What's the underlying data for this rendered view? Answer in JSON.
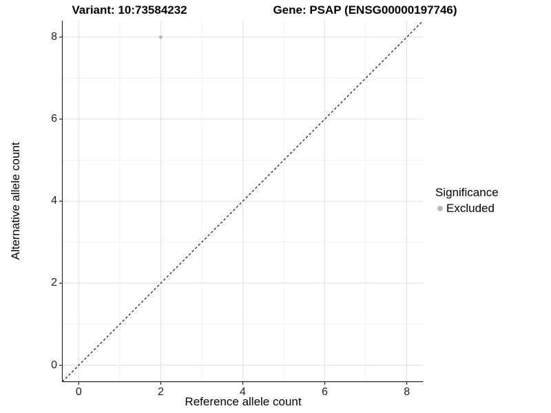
{
  "chart_data": {
    "type": "scatter",
    "title_left": "Variant: 10:73584232",
    "title_right": "Gene: PSAP (ENSG00000197746)",
    "xlabel": "Reference allele count",
    "ylabel": "Alternative allele count",
    "xlim": [
      -0.4,
      8.4
    ],
    "ylim": [
      -0.4,
      8.4
    ],
    "x_ticks": [
      0,
      2,
      4,
      6,
      8
    ],
    "y_ticks": [
      0,
      2,
      4,
      6,
      8
    ],
    "x_minor_ticks": [
      1,
      3,
      5,
      7
    ],
    "y_minor_ticks": [
      1,
      3,
      5,
      7
    ],
    "grid": "major+minor",
    "identity_line": {
      "slope": 1,
      "intercept": 0,
      "style": "dashed",
      "color": "#000000"
    },
    "series": [
      {
        "name": "Excluded",
        "color": "#b9b9b9",
        "points": [
          {
            "x": 2,
            "y": 8
          }
        ]
      }
    ],
    "legend": {
      "title": "Significance",
      "position": "right",
      "entries": [
        {
          "label": "Excluded",
          "color": "#b9b9b9"
        }
      ]
    },
    "colors": {
      "grid_major": "#e2e2e2",
      "grid_minor": "#f0f0f0",
      "axis": "#222222",
      "tick_text": "#1f1f1f",
      "background": "#ffffff"
    }
  }
}
